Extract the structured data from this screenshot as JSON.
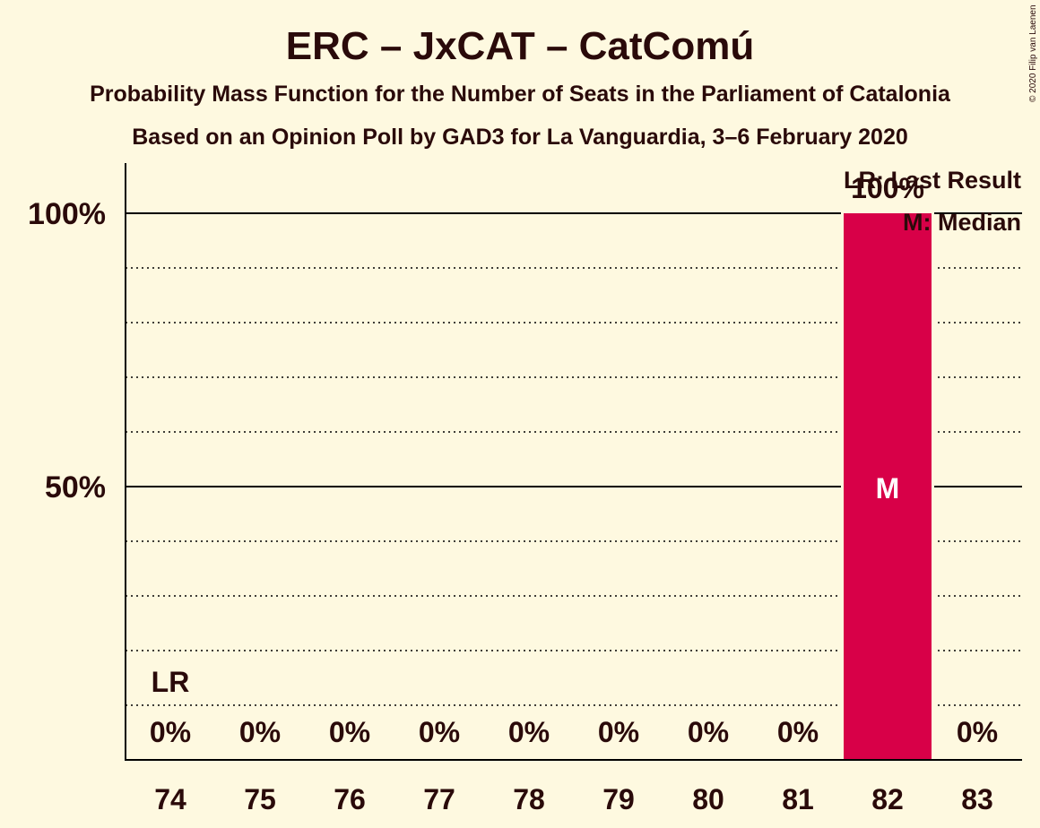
{
  "copyright": "© 2020 Filip van Laenen",
  "colors": {
    "background": "#FEF9E0",
    "bar": "#D80048",
    "text": "#2a0a0a",
    "median_text": "#FFFFFF"
  },
  "chart_data": {
    "type": "bar",
    "title": "ERC – JxCAT – CatComú",
    "subtitle": "Probability Mass Function for the Number of Seats in the Parliament of Catalonia",
    "subtitle2": "Based on an Opinion Poll by GAD3 for La Vanguardia, 3–6 February 2020",
    "categories": [
      "74",
      "75",
      "76",
      "77",
      "78",
      "79",
      "80",
      "81",
      "82",
      "83"
    ],
    "values": [
      0,
      0,
      0,
      0,
      0,
      0,
      0,
      0,
      100,
      0
    ],
    "value_labels": [
      "0%",
      "0%",
      "0%",
      "0%",
      "0%",
      "0%",
      "0%",
      "0%",
      "100%",
      "0%"
    ],
    "ylim": [
      0,
      100
    ],
    "yticks": [
      {
        "value": 50,
        "label": "50%"
      },
      {
        "value": 100,
        "label": "100%"
      }
    ],
    "minor_gridlines": [
      10,
      20,
      30,
      40,
      60,
      70,
      80,
      90
    ],
    "last_result": {
      "category": "74",
      "label": "LR"
    },
    "median": {
      "category": "82",
      "label": "M"
    },
    "legend": [
      "LR: Last Result",
      "M: Median"
    ],
    "legend_position": "top-right"
  }
}
